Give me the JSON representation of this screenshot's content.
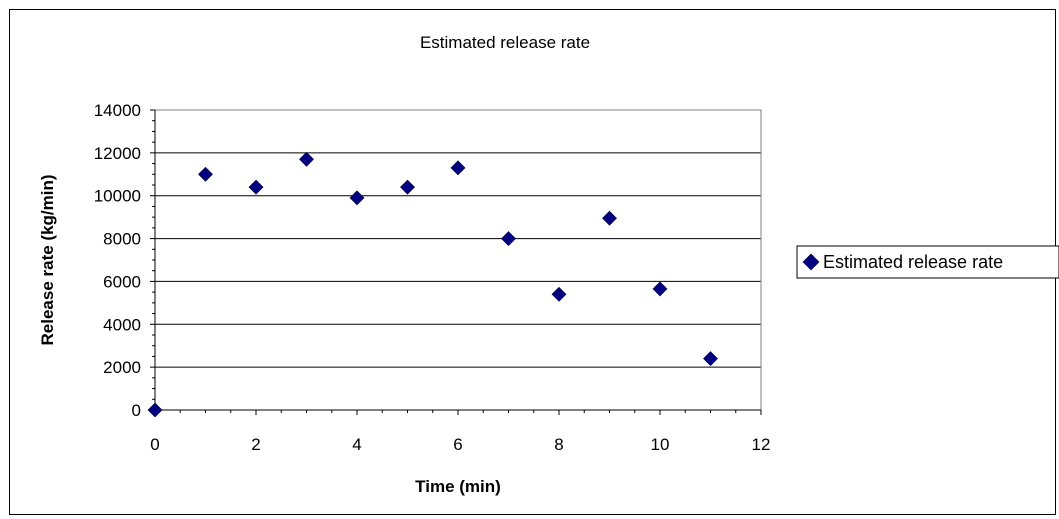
{
  "chart_data": {
    "type": "scatter",
    "title": "Estimated release rate",
    "xlabel": "Time (min)",
    "ylabel": "Release rate (kg/min)",
    "xlim": [
      0,
      12
    ],
    "ylim": [
      0,
      14000
    ],
    "xticks": [
      0,
      2,
      4,
      6,
      8,
      10,
      12
    ],
    "yticks": [
      0,
      2000,
      4000,
      6000,
      8000,
      10000,
      12000,
      14000
    ],
    "grid": "horizontal major",
    "legend": "right",
    "series": [
      {
        "name": "Estimated release rate",
        "color": "#000080",
        "marker": "diamond",
        "x": [
          0,
          1,
          2,
          3,
          4,
          5,
          6,
          7,
          8,
          9,
          10,
          11
        ],
        "y": [
          0,
          11000,
          10400,
          11700,
          9900,
          10400,
          11300,
          8000,
          5400,
          8950,
          5650,
          2400
        ]
      }
    ]
  }
}
